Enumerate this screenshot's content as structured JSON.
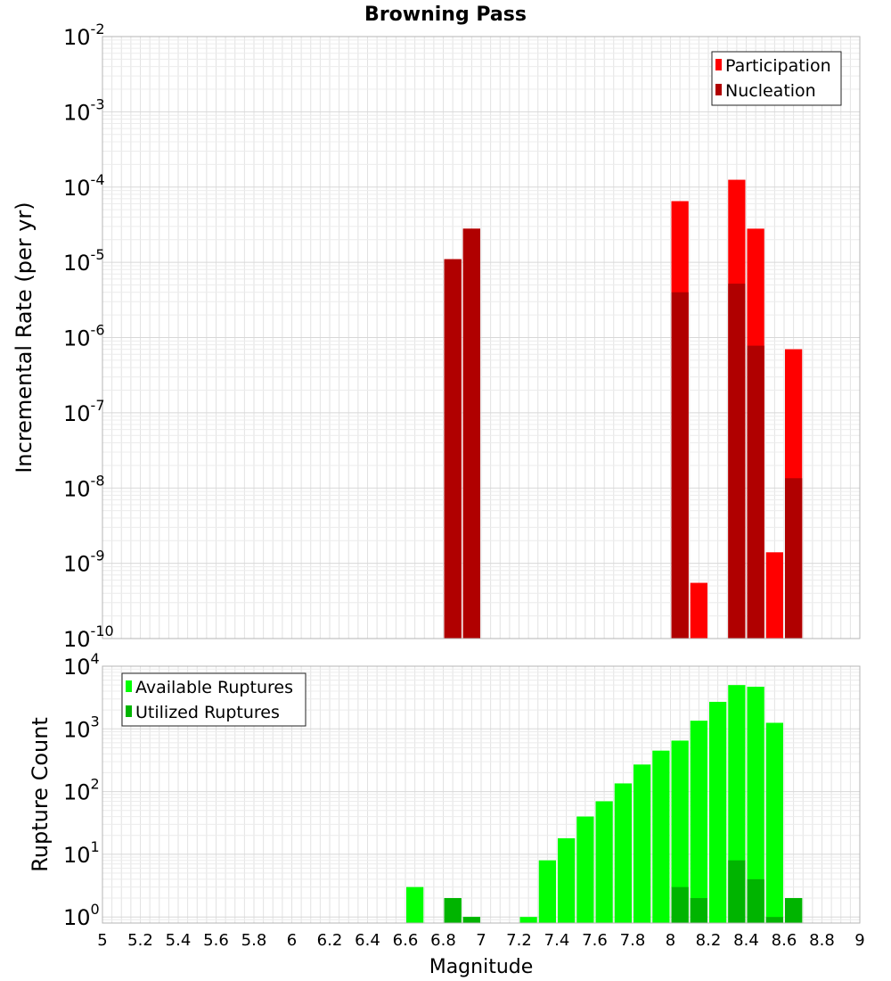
{
  "chart_data": [
    {
      "type": "bar",
      "title": "Browning Pass",
      "ylabel": "Incremental Rate (per yr)",
      "xlabel": "",
      "yscale": "log",
      "ylim": [
        1e-10,
        0.01
      ],
      "xlim": [
        5,
        9
      ],
      "y_ticks": [
        {
          "base": "10",
          "exp": "-10",
          "value": 1e-10
        },
        {
          "base": "10",
          "exp": "-9",
          "value": 1e-09
        },
        {
          "base": "10",
          "exp": "-8",
          "value": 1e-08
        },
        {
          "base": "10",
          "exp": "-7",
          "value": 1e-07
        },
        {
          "base": "10",
          "exp": "-6",
          "value": 1e-06
        },
        {
          "base": "10",
          "exp": "-5",
          "value": 1e-05
        },
        {
          "base": "10",
          "exp": "-4",
          "value": 0.0001
        },
        {
          "base": "10",
          "exp": "-3",
          "value": 0.001
        },
        {
          "base": "10",
          "exp": "-2",
          "value": 0.01
        }
      ],
      "legend_position": "top-right",
      "grid": true,
      "series": [
        {
          "name": "Participation",
          "color": "#ff0000",
          "points": [
            {
              "x": 6.85,
              "y": 1.1e-05
            },
            {
              "x": 6.95,
              "y": 2.8e-05
            },
            {
              "x": 8.05,
              "y": 6.5e-05
            },
            {
              "x": 8.15,
              "y": 5.5e-10
            },
            {
              "x": 8.35,
              "y": 0.000125
            },
            {
              "x": 8.45,
              "y": 2.8e-05
            },
            {
              "x": 8.55,
              "y": 1.4e-09
            },
            {
              "x": 8.65,
              "y": 7e-07
            }
          ]
        },
        {
          "name": "Nucleation",
          "color": "#b00000",
          "points": [
            {
              "x": 6.85,
              "y": 1.1e-05
            },
            {
              "x": 6.95,
              "y": 2.8e-05
            },
            {
              "x": 8.05,
              "y": 4e-06
            },
            {
              "x": 8.35,
              "y": 5.2e-06
            },
            {
              "x": 8.45,
              "y": 7.8e-07
            },
            {
              "x": 8.65,
              "y": 1.35e-08
            }
          ]
        }
      ]
    },
    {
      "type": "bar",
      "title": "",
      "ylabel": "Rupture Count",
      "xlabel": "Magnitude",
      "yscale": "log",
      "ylim": [
        0.8,
        10000
      ],
      "xlim": [
        5,
        9
      ],
      "y_ticks": [
        {
          "base": "10",
          "exp": "0",
          "value": 1
        },
        {
          "base": "10",
          "exp": "1",
          "value": 10
        },
        {
          "base": "10",
          "exp": "2",
          "value": 100
        },
        {
          "base": "10",
          "exp": "3",
          "value": 1000
        },
        {
          "base": "10",
          "exp": "4",
          "value": 10000
        }
      ],
      "x_ticks": [
        "5",
        "5.2",
        "5.4",
        "5.6",
        "5.8",
        "6",
        "6.2",
        "6.4",
        "6.6",
        "6.8",
        "7",
        "7.2",
        "7.4",
        "7.6",
        "7.8",
        "8",
        "8.2",
        "8.4",
        "8.6",
        "8.8",
        "9"
      ],
      "legend_position": "top-left",
      "grid": true,
      "series": [
        {
          "name": "Available Ruptures",
          "color": "#00ff00",
          "points": [
            {
              "x": 6.65,
              "y": 3
            },
            {
              "x": 6.85,
              "y": 2
            },
            {
              "x": 6.95,
              "y": 1
            },
            {
              "x": 7.25,
              "y": 1
            },
            {
              "x": 7.35,
              "y": 8
            },
            {
              "x": 7.45,
              "y": 18
            },
            {
              "x": 7.55,
              "y": 40
            },
            {
              "x": 7.65,
              "y": 70
            },
            {
              "x": 7.75,
              "y": 135
            },
            {
              "x": 7.85,
              "y": 270
            },
            {
              "x": 7.95,
              "y": 450
            },
            {
              "x": 8.05,
              "y": 650
            },
            {
              "x": 8.15,
              "y": 1350
            },
            {
              "x": 8.25,
              "y": 2700
            },
            {
              "x": 8.35,
              "y": 5000
            },
            {
              "x": 8.45,
              "y": 4700
            },
            {
              "x": 8.55,
              "y": 1250
            },
            {
              "x": 8.65,
              "y": 2
            }
          ]
        },
        {
          "name": "Utilized Ruptures",
          "color": "#00b400",
          "points": [
            {
              "x": 6.85,
              "y": 2
            },
            {
              "x": 6.95,
              "y": 1
            },
            {
              "x": 8.05,
              "y": 3
            },
            {
              "x": 8.15,
              "y": 2
            },
            {
              "x": 8.35,
              "y": 8
            },
            {
              "x": 8.45,
              "y": 4
            },
            {
              "x": 8.55,
              "y": 1
            },
            {
              "x": 8.65,
              "y": 2
            }
          ]
        }
      ]
    }
  ]
}
